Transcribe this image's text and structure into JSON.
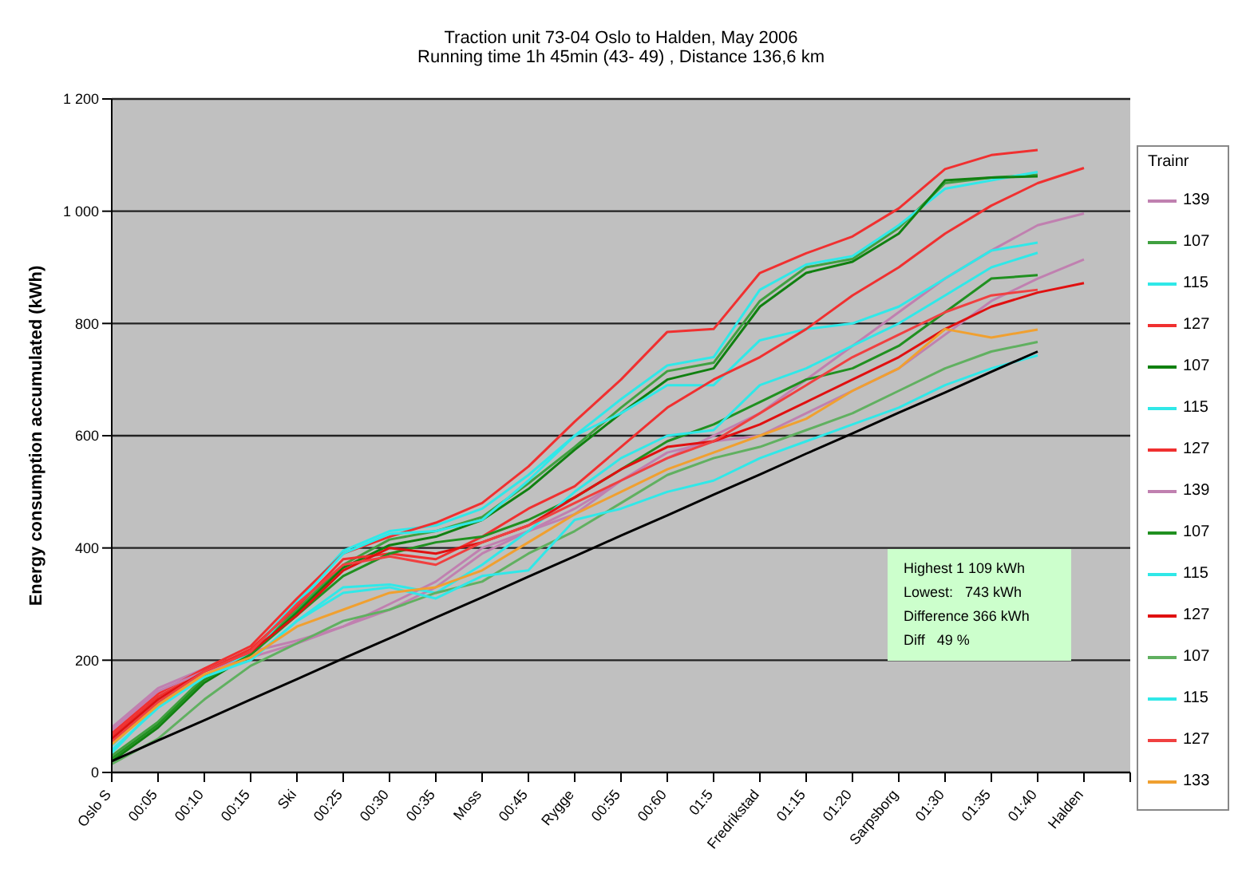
{
  "chart_data": {
    "type": "line",
    "title": "Traction unit 73-04   Oslo to Halden, May 2006",
    "subtitle": "Running time 1h 45min (43- 49) ,  Distance 136,6 km",
    "ylabel": "Energy consumption accumulated (kWh)",
    "legend_title": "Trainr",
    "legend": "right",
    "grid": "y",
    "categories": [
      "Oslo S",
      "00:05",
      "00:10",
      "00:15",
      "Ski",
      "00:25",
      "00:30",
      "00:35",
      "Moss",
      "00:45",
      "Rygge",
      "00:55",
      "00:60",
      "01:5",
      "Fredrikstad",
      "01:15",
      "01:20",
      "Sarpsborg",
      "01:30",
      "01:35",
      "01:40",
      "Halden",
      null
    ],
    "ylim": [
      0,
      1200
    ],
    "yticks": [
      0,
      200,
      400,
      600,
      800,
      {
        "value": 1000,
        "label": "1 000"
      },
      {
        "value": 1200,
        "label": "1 200"
      }
    ],
    "annotations": [
      "Highest 1 109 kWh",
      "Lowest:   743 kWh",
      "Difference 366 kWh",
      "Diff   49 %"
    ],
    "series": [
      {
        "name": "139",
        "color": "#c080b0",
        "values": [
          80,
          150,
          185,
          215,
          235,
          260,
          300,
          340,
          400,
          430,
          460,
          520,
          560,
          600,
          640,
          700,
          760,
          820,
          880,
          930,
          975,
          996,
          null
        ]
      },
      {
        "name": "107",
        "color": "#40a040",
        "values": [
          30,
          90,
          170,
          215,
          290,
          370,
          415,
          430,
          455,
          515,
          580,
          650,
          715,
          730,
          840,
          900,
          915,
          970,
          1050,
          1060,
          1065,
          null,
          null
        ]
      },
      {
        "name": "115",
        "color": "#30e8e8",
        "values": [
          62,
          130,
          180,
          215,
          305,
          395,
          430,
          440,
          470,
          530,
          600,
          665,
          725,
          740,
          860,
          905,
          920,
          975,
          1040,
          1055,
          1070,
          null,
          null
        ]
      },
      {
        "name": "127",
        "color": "#f03030",
        "values": [
          70,
          140,
          185,
          225,
          310,
          390,
          420,
          445,
          480,
          545,
          625,
          700,
          785,
          790,
          890,
          925,
          955,
          1005,
          1075,
          1100,
          1109,
          null,
          null
        ]
      },
      {
        "name": "107",
        "color": "#108010",
        "values": [
          20,
          80,
          160,
          210,
          285,
          365,
          405,
          420,
          450,
          505,
          575,
          640,
          700,
          720,
          830,
          890,
          910,
          960,
          1055,
          1060,
          1062,
          null,
          null
        ]
      },
      {
        "name": "115",
        "color": "#30e8e8",
        "values": [
          48,
          125,
          180,
          210,
          300,
          390,
          425,
          430,
          450,
          520,
          600,
          640,
          690,
          690,
          770,
          790,
          800,
          830,
          880,
          930,
          944,
          null,
          null
        ]
      },
      {
        "name": "127",
        "color": "#f03030",
        "values": [
          65,
          135,
          180,
          220,
          295,
          380,
          390,
          380,
          420,
          470,
          510,
          580,
          650,
          700,
          740,
          790,
          850,
          900,
          960,
          1010,
          1050,
          1077,
          null
        ]
      },
      {
        "name": "139",
        "color": "#c080b0",
        "values": [
          75,
          145,
          180,
          205,
          230,
          260,
          290,
          330,
          390,
          430,
          470,
          520,
          570,
          590,
          600,
          640,
          680,
          720,
          780,
          840,
          880,
          914,
          null
        ]
      },
      {
        "name": "107",
        "color": "#209020",
        "values": [
          25,
          85,
          165,
          210,
          280,
          350,
          390,
          410,
          420,
          450,
          490,
          540,
          590,
          620,
          660,
          700,
          720,
          760,
          820,
          880,
          886,
          null,
          null
        ]
      },
      {
        "name": "115",
        "color": "#30e8e8",
        "values": [
          35,
          120,
          175,
          200,
          270,
          330,
          335,
          320,
          370,
          430,
          500,
          560,
          600,
          610,
          690,
          720,
          760,
          800,
          850,
          900,
          926,
          null,
          null
        ]
      },
      {
        "name": "127",
        "color": "#e01010",
        "values": [
          60,
          130,
          180,
          215,
          280,
          360,
          400,
          390,
          410,
          440,
          490,
          540,
          580,
          590,
          620,
          660,
          700,
          740,
          790,
          830,
          855,
          872,
          null
        ]
      },
      {
        "name": "107",
        "color": "#60b060",
        "values": [
          15,
          60,
          130,
          190,
          230,
          270,
          290,
          320,
          340,
          390,
          430,
          480,
          530,
          560,
          580,
          610,
          640,
          680,
          720,
          750,
          767,
          null,
          null
        ]
      },
      {
        "name": "115",
        "color": "#30e8e8",
        "values": [
          40,
          115,
          170,
          200,
          270,
          320,
          330,
          310,
          350,
          360,
          450,
          470,
          500,
          520,
          560,
          590,
          620,
          650,
          690,
          720,
          743,
          null,
          null
        ]
      },
      {
        "name": "127",
        "color": "#f04040",
        "values": [
          55,
          125,
          180,
          215,
          300,
          370,
          385,
          370,
          410,
          440,
          480,
          520,
          560,
          590,
          640,
          690,
          740,
          780,
          820,
          850,
          860,
          null,
          null
        ]
      },
      {
        "name": "133",
        "color": "#f0a030",
        "values": [
          50,
          120,
          175,
          205,
          260,
          290,
          320,
          330,
          360,
          410,
          460,
          500,
          540,
          570,
          600,
          630,
          680,
          720,
          790,
          775,
          789,
          null,
          null
        ]
      },
      {
        "color": "#000000",
        "values": [
          20,
          57,
          93,
          130,
          166,
          203,
          239,
          276,
          312,
          349,
          385,
          422,
          458,
          495,
          531,
          568,
          604,
          641,
          677,
          714,
          750,
          null,
          null
        ]
      }
    ]
  }
}
